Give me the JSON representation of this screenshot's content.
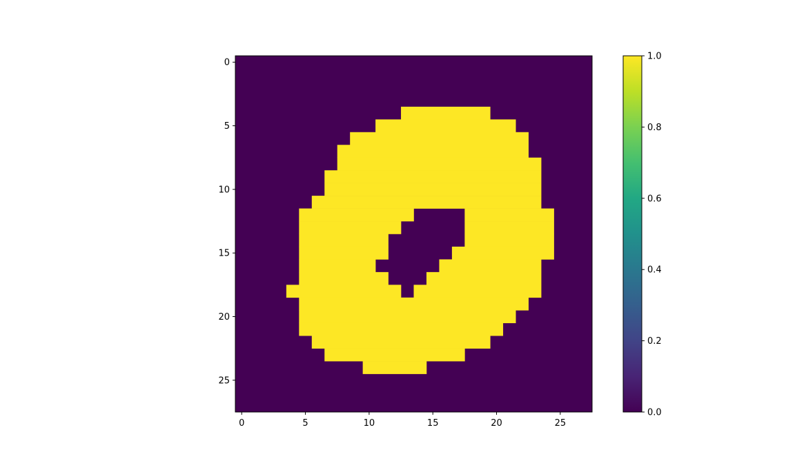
{
  "chart_data": {
    "type": "heatmap",
    "title": "",
    "xlabel": "",
    "ylabel": "",
    "rows": 28,
    "cols": 28,
    "xlim": [
      -0.5,
      27.5
    ],
    "ylim": [
      27.5,
      -0.5
    ],
    "x_ticks": [
      0,
      5,
      10,
      15,
      20,
      25
    ],
    "x_tick_labels": [
      "0",
      "5",
      "10",
      "15",
      "20",
      "25"
    ],
    "y_ticks": [
      0,
      5,
      10,
      15,
      20,
      25
    ],
    "y_tick_labels": [
      "0",
      "5",
      "10",
      "15",
      "20",
      "25"
    ],
    "grid": false,
    "colormap": "viridis",
    "colors": {
      "low": "#440154",
      "high": "#fde725"
    },
    "colorbar": {
      "range": [
        0.0,
        1.0
      ],
      "ticks": [
        0.0,
        0.2,
        0.4,
        0.6,
        0.8,
        1.0
      ],
      "tick_labels": [
        "0.0",
        "0.2",
        "0.4",
        "0.6",
        "0.8",
        "1.0"
      ],
      "placement": "right"
    },
    "fg_row_spans": [
      [],
      [],
      [],
      [],
      [
        [
          13,
          19
        ]
      ],
      [
        [
          11,
          21
        ]
      ],
      [
        [
          9,
          22
        ]
      ],
      [
        [
          8,
          22
        ]
      ],
      [
        [
          8,
          23
        ]
      ],
      [
        [
          7,
          23
        ]
      ],
      [
        [
          7,
          23
        ]
      ],
      [
        [
          6,
          23
        ]
      ],
      [
        [
          5,
          13
        ],
        [
          18,
          24
        ]
      ],
      [
        [
          5,
          12
        ],
        [
          18,
          24
        ]
      ],
      [
        [
          5,
          11
        ],
        [
          18,
          24
        ]
      ],
      [
        [
          5,
          11
        ],
        [
          17,
          24
        ]
      ],
      [
        [
          5,
          10
        ],
        [
          16,
          23
        ]
      ],
      [
        [
          5,
          11
        ],
        [
          15,
          23
        ]
      ],
      [
        [
          4,
          12
        ],
        [
          14,
          23
        ]
      ],
      [
        [
          5,
          22
        ]
      ],
      [
        [
          5,
          21
        ]
      ],
      [
        [
          5,
          20
        ]
      ],
      [
        [
          6,
          19
        ]
      ],
      [
        [
          7,
          17
        ]
      ],
      [
        [
          10,
          14
        ]
      ],
      [],
      [],
      []
    ]
  }
}
